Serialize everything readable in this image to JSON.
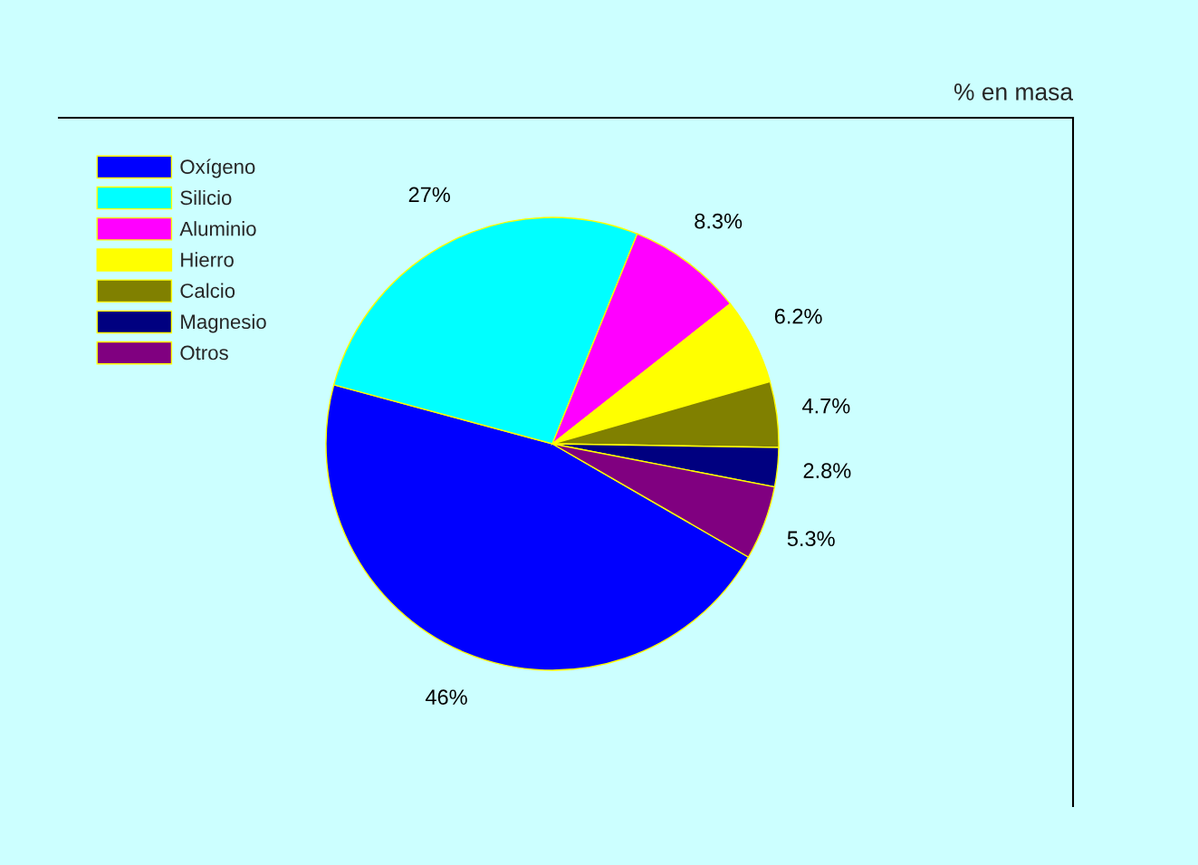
{
  "chart_data": {
    "type": "pie",
    "title": "% en masa",
    "categories": [
      "Oxígeno",
      "Silicio",
      "Aluminio",
      "Hierro",
      "Calcio",
      "Magnesio",
      "Otros"
    ],
    "values": [
      46,
      27,
      8.3,
      6.2,
      4.7,
      2.8,
      5.3
    ],
    "colors": [
      "#0000ff",
      "#00ffff",
      "#ff00ff",
      "#ffff00",
      "#808000",
      "#000080",
      "#800080"
    ],
    "value_labels": [
      "46%",
      "27%",
      "8.3%",
      "6.2%",
      "4.7%",
      "2.8%",
      "5.3%"
    ],
    "legend": "top left"
  }
}
